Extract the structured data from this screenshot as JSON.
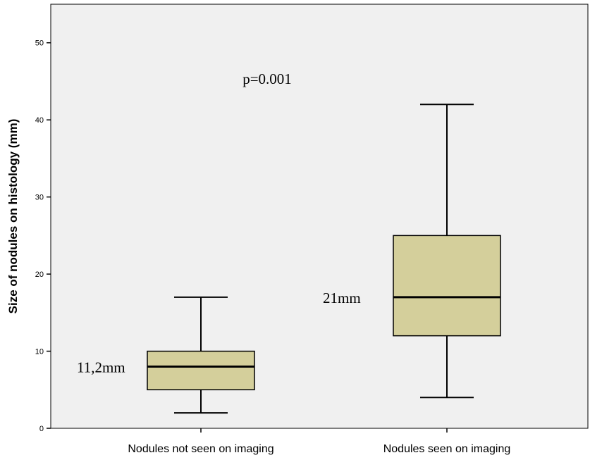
{
  "chart_data": {
    "type": "boxplot",
    "ylabel": "Size of nodules on histology (mm)",
    "ylim": [
      0,
      55
    ],
    "yticks": [
      0,
      10,
      20,
      30,
      40,
      50
    ],
    "categories": [
      "Nodules not seen on imaging",
      "Nodules seen on imaging"
    ],
    "boxes": [
      {
        "category": "Nodules not seen on imaging",
        "min": 2,
        "q1": 5,
        "median": 8,
        "q3": 10,
        "max": 17,
        "label": "11,2mm"
      },
      {
        "category": "Nodules seen on imaging",
        "min": 4,
        "q1": 12,
        "median": 17,
        "q3": 25,
        "max": 42,
        "label": "21mm"
      }
    ],
    "annotations": [
      {
        "text": "p=0.001"
      }
    ],
    "colors": {
      "plot_bg": "#f0f0f0",
      "box_fill": "#d4cf9b",
      "line": "#000000"
    }
  }
}
